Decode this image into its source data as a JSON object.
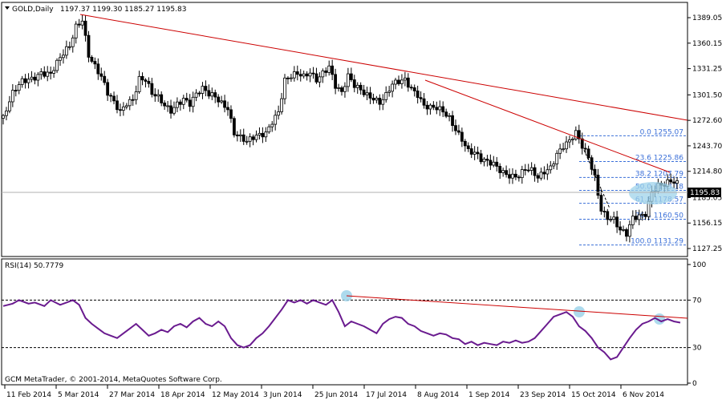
{
  "header": {
    "symbol": "GOLD,Daily",
    "ohlc": "1197.37 1199.30 1185.27 1195.83"
  },
  "rsi_panel": {
    "label": "RSI(14) 50.7779",
    "levels": [
      70,
      30
    ]
  },
  "footer": "GCM MetaTrader, © 2001-2014, MetaQuotes Software Corp.",
  "current_price_label": "1195.83",
  "fibonacci": [
    {
      "ratio": "0.0",
      "price": "1255.07",
      "value": 1255.07
    },
    {
      "ratio": "23.6",
      "price": "1225.86",
      "value": 1225.86
    },
    {
      "ratio": "38.2",
      "price": "1207.79",
      "value": 1207.79
    },
    {
      "ratio": "50.0",
      "price": "1193.18",
      "value": 1193.18
    },
    {
      "ratio": "61.8",
      "price": "1178.57",
      "value": 1178.57
    },
    {
      "ratio": "76.4",
      "price": "1160.50",
      "value": 1160.5
    },
    {
      "ratio": "100.0",
      "price": "1131.29",
      "value": 1131.29
    }
  ],
  "colors": {
    "candle": "#000000",
    "trendline": "#cc0000",
    "rsi": "#6a1b8f",
    "fib": "#3a6fd8",
    "highlight": "#9fd3ea"
  },
  "chart_data": [
    {
      "type": "candlestick",
      "title": "GOLD,Daily",
      "ylim": [
        1120,
        1400
      ],
      "y_ticks": [
        "1389.05",
        "1360.15",
        "1331.25",
        "1301.50",
        "1272.60",
        "1243.70",
        "1214.80",
        "1185.05",
        "1156.15",
        "1127.25"
      ],
      "x_ticks": [
        "11 Feb 2014",
        "5 Mar 2014",
        "27 Mar 2014",
        "18 Apr 2014",
        "12 May 2014",
        "3 Jun 2014",
        "25 Jun 2014",
        "17 Jul 2014",
        "8 Aug 2014",
        "1 Sep 2014",
        "23 Sep 2014",
        "15 Oct 2014",
        "6 Nov 2014"
      ],
      "close_path": [
        [
          0,
          1275
        ],
        [
          3,
          1300
        ],
        [
          6,
          1315
        ],
        [
          9,
          1322
        ],
        [
          12,
          1330
        ],
        [
          15,
          1325
        ],
        [
          18,
          1340
        ],
        [
          21,
          1355
        ],
        [
          23,
          1380
        ],
        [
          25,
          1390
        ],
        [
          27,
          1350
        ],
        [
          29,
          1335
        ],
        [
          31,
          1320
        ],
        [
          33,
          1300
        ],
        [
          35,
          1290
        ],
        [
          37,
          1282
        ],
        [
          39,
          1295
        ],
        [
          41,
          1300
        ],
        [
          43,
          1322
        ],
        [
          45,
          1318
        ],
        [
          47,
          1300
        ],
        [
          49,
          1295
        ],
        [
          51,
          1288
        ],
        [
          53,
          1285
        ],
        [
          55,
          1295
        ],
        [
          57,
          1300
        ],
        [
          59,
          1292
        ],
        [
          61,
          1300
        ],
        [
          63,
          1305
        ],
        [
          65,
          1300
        ],
        [
          67,
          1300
        ],
        [
          69,
          1295
        ],
        [
          71,
          1290
        ],
        [
          73,
          1260
        ],
        [
          75,
          1252
        ],
        [
          77,
          1245
        ],
        [
          79,
          1250
        ],
        [
          81,
          1255
        ],
        [
          83,
          1260
        ],
        [
          85,
          1275
        ],
        [
          87,
          1285
        ],
        [
          89,
          1318
        ],
        [
          91,
          1320
        ],
        [
          93,
          1322
        ],
        [
          95,
          1320
        ],
        [
          97,
          1328
        ],
        [
          99,
          1322
        ],
        [
          101,
          1330
        ],
        [
          103,
          1335
        ],
        [
          105,
          1310
        ],
        [
          107,
          1300
        ],
        [
          109,
          1320
        ],
        [
          111,
          1312
        ],
        [
          113,
          1310
        ],
        [
          115,
          1305
        ],
        [
          117,
          1300
        ],
        [
          119,
          1292
        ],
        [
          121,
          1298
        ],
        [
          123,
          1310
        ],
        [
          125,
          1315
        ],
        [
          127,
          1320
        ],
        [
          129,
          1312
        ],
        [
          131,
          1305
        ],
        [
          133,
          1290
        ],
        [
          135,
          1285
        ],
        [
          137,
          1283
        ],
        [
          139,
          1280
        ],
        [
          141,
          1275
        ],
        [
          143,
          1265
        ],
        [
          145,
          1255
        ],
        [
          147,
          1240
        ],
        [
          149,
          1235
        ],
        [
          151,
          1225
        ],
        [
          153,
          1222
        ],
        [
          155,
          1222
        ],
        [
          157,
          1218
        ],
        [
          159,
          1215
        ],
        [
          161,
          1212
        ],
        [
          163,
          1210
        ],
        [
          165,
          1215
        ],
        [
          167,
          1212
        ],
        [
          169,
          1205
        ],
        [
          171,
          1215
        ],
        [
          173,
          1222
        ],
        [
          175,
          1238
        ],
        [
          177,
          1245
        ],
        [
          179,
          1248
        ],
        [
          181,
          1255
        ],
        [
          183,
          1240
        ],
        [
          185,
          1230
        ],
        [
          187,
          1210
        ],
        [
          189,
          1175
        ],
        [
          191,
          1165
        ],
        [
          193,
          1160
        ],
        [
          195,
          1145
        ],
        [
          197,
          1140
        ],
        [
          199,
          1160
        ],
        [
          201,
          1165
        ],
        [
          203,
          1170
        ],
        [
          205,
          1195
        ],
        [
          207,
          1200
        ],
        [
          209,
          1198
        ],
        [
          211,
          1200
        ],
        [
          213,
          1198
        ],
        [
          214,
          1196
        ]
      ],
      "n_bars": 214
    },
    {
      "type": "line",
      "title": "RSI(14) 50.7779",
      "ylim": [
        0,
        100
      ],
      "y_ticks": [
        "100",
        "70",
        "30",
        "0"
      ],
      "series": [
        {
          "name": "RSI(14)",
          "values": [
            [
              0,
              65
            ],
            [
              3,
              67
            ],
            [
              5,
              70
            ],
            [
              8,
              67
            ],
            [
              10,
              68
            ],
            [
              13,
              65
            ],
            [
              15,
              70
            ],
            [
              18,
              66
            ],
            [
              20,
              68
            ],
            [
              22,
              70
            ],
            [
              24,
              66
            ],
            [
              26,
              55
            ],
            [
              28,
              50
            ],
            [
              30,
              46
            ],
            [
              32,
              42
            ],
            [
              34,
              40
            ],
            [
              36,
              38
            ],
            [
              38,
              42
            ],
            [
              40,
              46
            ],
            [
              42,
              50
            ],
            [
              44,
              45
            ],
            [
              46,
              40
            ],
            [
              48,
              42
            ],
            [
              50,
              45
            ],
            [
              52,
              43
            ],
            [
              54,
              48
            ],
            [
              56,
              50
            ],
            [
              58,
              47
            ],
            [
              60,
              52
            ],
            [
              62,
              55
            ],
            [
              64,
              50
            ],
            [
              66,
              48
            ],
            [
              68,
              52
            ],
            [
              70,
              48
            ],
            [
              72,
              38
            ],
            [
              74,
              32
            ],
            [
              76,
              30
            ],
            [
              78,
              32
            ],
            [
              80,
              38
            ],
            [
              82,
              42
            ],
            [
              84,
              48
            ],
            [
              86,
              55
            ],
            [
              88,
              62
            ],
            [
              90,
              70
            ],
            [
              92,
              68
            ],
            [
              94,
              70
            ],
            [
              96,
              67
            ],
            [
              98,
              70
            ],
            [
              100,
              68
            ],
            [
              102,
              66
            ],
            [
              104,
              70
            ],
            [
              106,
              60
            ],
            [
              108,
              48
            ],
            [
              110,
              52
            ],
            [
              112,
              50
            ],
            [
              114,
              48
            ],
            [
              116,
              45
            ],
            [
              118,
              42
            ],
            [
              120,
              50
            ],
            [
              122,
              54
            ],
            [
              124,
              56
            ],
            [
              126,
              55
            ],
            [
              128,
              50
            ],
            [
              130,
              48
            ],
            [
              132,
              44
            ],
            [
              134,
              42
            ],
            [
              136,
              40
            ],
            [
              138,
              42
            ],
            [
              140,
              41
            ],
            [
              142,
              38
            ],
            [
              144,
              37
            ],
            [
              146,
              33
            ],
            [
              148,
              35
            ],
            [
              150,
              32
            ],
            [
              152,
              34
            ],
            [
              154,
              33
            ],
            [
              156,
              32
            ],
            [
              158,
              35
            ],
            [
              160,
              34
            ],
            [
              162,
              36
            ],
            [
              164,
              34
            ],
            [
              166,
              35
            ],
            [
              168,
              38
            ],
            [
              170,
              44
            ],
            [
              172,
              50
            ],
            [
              174,
              56
            ],
            [
              176,
              58
            ],
            [
              178,
              60
            ],
            [
              180,
              56
            ],
            [
              182,
              48
            ],
            [
              184,
              44
            ],
            [
              186,
              38
            ],
            [
              188,
              30
            ],
            [
              190,
              26
            ],
            [
              192,
              20
            ],
            [
              194,
              22
            ],
            [
              196,
              30
            ],
            [
              198,
              38
            ],
            [
              200,
              45
            ],
            [
              202,
              50
            ],
            [
              204,
              52
            ],
            [
              206,
              55
            ],
            [
              208,
              52
            ],
            [
              210,
              54
            ],
            [
              212,
              52
            ],
            [
              214,
              51
            ]
          ]
        }
      ]
    }
  ]
}
